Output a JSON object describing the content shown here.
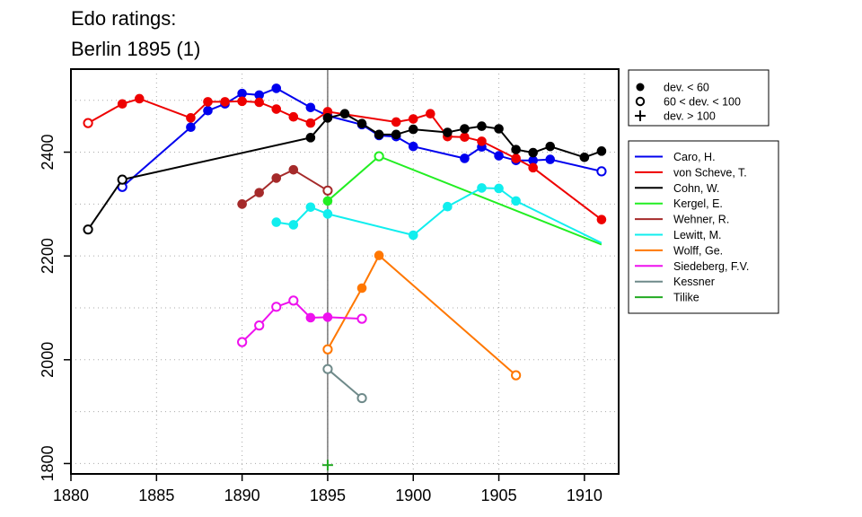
{
  "title_line1": "Edo ratings:",
  "title_line2": "Berlin 1895 (1)",
  "chart_data": {
    "type": "line",
    "title": "Edo ratings: Berlin 1895 (1)",
    "xlabel": "",
    "ylabel": "",
    "xlim": [
      1880,
      1912
    ],
    "ylim": [
      1780,
      2560
    ],
    "xticks": [
      1880,
      1885,
      1890,
      1895,
      1900,
      1905,
      1910
    ],
    "yticks": [
      1800,
      2000,
      2200,
      2400
    ],
    "grid": "dotted",
    "vline": 1895,
    "marker_legend": [
      {
        "symbol": "filled-circle",
        "label": "dev. < 60"
      },
      {
        "symbol": "open-circle",
        "label": "60 < dev. < 100"
      },
      {
        "symbol": "plus",
        "label": "dev. > 100"
      }
    ],
    "series": [
      {
        "name": "Caro, H.",
        "color": "#0000ee",
        "points": [
          [
            1883,
            2333,
            "o"
          ],
          [
            1887,
            2448,
            "f"
          ],
          [
            1888,
            2480,
            "f"
          ],
          [
            1889,
            2493,
            "f"
          ],
          [
            1890,
            2513,
            "f"
          ],
          [
            1891,
            2510,
            "f"
          ],
          [
            1892,
            2523,
            "f"
          ],
          [
            1894,
            2486,
            "f"
          ],
          [
            1895,
            2470,
            "f"
          ],
          [
            1897,
            2453,
            "f"
          ],
          [
            1898,
            2432,
            "f"
          ],
          [
            1899,
            2430,
            "f"
          ],
          [
            1900,
            2411,
            "f"
          ],
          [
            1903,
            2388,
            "f"
          ],
          [
            1904,
            2410,
            "f"
          ],
          [
            1905,
            2393,
            "f"
          ],
          [
            1906,
            2384,
            "f"
          ],
          [
            1907,
            2384,
            "f"
          ],
          [
            1908,
            2386,
            "f"
          ],
          [
            1911,
            2363,
            "o"
          ]
        ]
      },
      {
        "name": "von Scheve, T.",
        "color": "#ee0000",
        "points": [
          [
            1881,
            2456,
            "o"
          ],
          [
            1883,
            2493,
            "f"
          ],
          [
            1884,
            2503,
            "f"
          ],
          [
            1887,
            2466,
            "f"
          ],
          [
            1888,
            2497,
            "f"
          ],
          [
            1889,
            2497,
            "f"
          ],
          [
            1890,
            2498,
            "f"
          ],
          [
            1891,
            2496,
            "f"
          ],
          [
            1892,
            2483,
            "f"
          ],
          [
            1893,
            2468,
            "f"
          ],
          [
            1894,
            2456,
            "f"
          ],
          [
            1895,
            2478,
            "f"
          ],
          [
            1899,
            2458,
            "f"
          ],
          [
            1900,
            2464,
            "f"
          ],
          [
            1901,
            2474,
            "f"
          ],
          [
            1902,
            2430,
            "f"
          ],
          [
            1903,
            2429,
            "f"
          ],
          [
            1904,
            2421,
            "f"
          ],
          [
            1906,
            2388,
            "f"
          ],
          [
            1907,
            2370,
            "f"
          ],
          [
            1911,
            2270,
            "f"
          ]
        ]
      },
      {
        "name": "Cohn, W.",
        "color": "#000000",
        "points": [
          [
            1881,
            2251,
            "o"
          ],
          [
            1883,
            2347,
            "o"
          ],
          [
            1894,
            2428,
            "f"
          ],
          [
            1895,
            2466,
            "f"
          ],
          [
            1896,
            2474,
            "f"
          ],
          [
            1897,
            2455,
            "f"
          ],
          [
            1898,
            2434,
            "f"
          ],
          [
            1899,
            2434,
            "f"
          ],
          [
            1900,
            2444,
            "f"
          ],
          [
            1902,
            2438,
            "f"
          ],
          [
            1903,
            2445,
            "f"
          ],
          [
            1904,
            2450,
            "f"
          ],
          [
            1905,
            2445,
            "f"
          ],
          [
            1906,
            2405,
            "f"
          ],
          [
            1907,
            2399,
            "f"
          ],
          [
            1908,
            2411,
            "f"
          ],
          [
            1910,
            2390,
            "f"
          ],
          [
            1911,
            2402,
            "f"
          ]
        ]
      },
      {
        "name": "Kergel, E.",
        "color": "#22ee22",
        "points": [
          [
            1895,
            2306,
            "f"
          ],
          [
            1898,
            2392,
            "o"
          ],
          [
            1911,
            2222,
            "n"
          ]
        ]
      },
      {
        "name": "Wehner, R.",
        "color": "#a52a2a",
        "points": [
          [
            1890,
            2300,
            "f"
          ],
          [
            1891,
            2322,
            "f"
          ],
          [
            1892,
            2350,
            "f"
          ],
          [
            1893,
            2366,
            "f"
          ],
          [
            1895,
            2326,
            "o"
          ]
        ]
      },
      {
        "name": "Lewitt, M.",
        "color": "#11eeee",
        "points": [
          [
            1892,
            2265,
            "f"
          ],
          [
            1893,
            2260,
            "f"
          ],
          [
            1894,
            2294,
            "f"
          ],
          [
            1895,
            2281,
            "f"
          ],
          [
            1900,
            2240,
            "f"
          ],
          [
            1902,
            2295,
            "f"
          ],
          [
            1904,
            2331,
            "f"
          ],
          [
            1905,
            2330,
            "f"
          ],
          [
            1906,
            2306,
            "f"
          ],
          [
            1911,
            2225,
            "n"
          ]
        ]
      },
      {
        "name": "Wolff, Ge.",
        "color": "#ff7700",
        "points": [
          [
            1895,
            2020,
            "o"
          ],
          [
            1897,
            2138,
            "f"
          ],
          [
            1898,
            2201,
            "f"
          ],
          [
            1906,
            1970,
            "o"
          ]
        ]
      },
      {
        "name": "Siedeberg, F.V.",
        "color": "#ee11ee",
        "points": [
          [
            1890,
            2034,
            "o"
          ],
          [
            1891,
            2066,
            "o"
          ],
          [
            1892,
            2102,
            "o"
          ],
          [
            1893,
            2114,
            "o"
          ],
          [
            1894,
            2081,
            "f"
          ],
          [
            1895,
            2082,
            "f"
          ],
          [
            1897,
            2079,
            "o"
          ]
        ]
      },
      {
        "name": "Kessner",
        "color": "#6f8a8a",
        "points": [
          [
            1895,
            1982,
            "o"
          ],
          [
            1897,
            1926,
            "o"
          ]
        ]
      },
      {
        "name": "Tilike",
        "color": "#22aa22",
        "points": [
          [
            1895,
            1797,
            "p"
          ]
        ]
      }
    ]
  }
}
